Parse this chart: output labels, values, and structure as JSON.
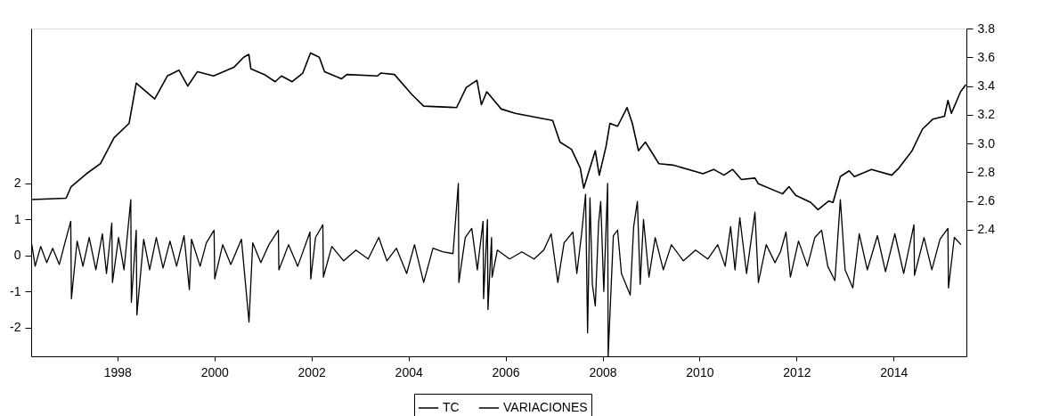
{
  "chart_data": {
    "type": "line",
    "xlim": [
      "1996-09-20",
      "2015-12-31"
    ],
    "xticks": [
      {
        "value": "1998-07-01",
        "label": "1998"
      },
      {
        "value": "2000-07-01",
        "label": "2000"
      },
      {
        "value": "2002-07-01",
        "label": "2002"
      },
      {
        "value": "2004-07-01",
        "label": "2004"
      },
      {
        "value": "2006-07-01",
        "label": "2006"
      },
      {
        "value": "2008-07-01",
        "label": "2008"
      },
      {
        "value": "2010-07-01",
        "label": "2010"
      },
      {
        "value": "2012-07-01",
        "label": "2012"
      },
      {
        "value": "2014-07-01",
        "label": "2014"
      }
    ],
    "ylim": [
      -2.8,
      6.3
    ],
    "yticks": [
      -2,
      -1,
      0,
      1,
      2
    ],
    "y2lim": [
      1.52,
      3.8
    ],
    "y2ticks": [
      2.4,
      2.6,
      2.8,
      {
        "value": 3,
        "label": "3.0"
      },
      3.2,
      3.4,
      3.6,
      3.8
    ],
    "grid": false,
    "legend": "bottom",
    "marker": "none",
    "line_style": "solid",
    "series": [
      {
        "name": "TC",
        "color": "#000000",
        "axis": "y2",
        "x": [
          "1996-09-25",
          "1997-06-10",
          "1997-07-18",
          "1997-11-10",
          "1998-02-24",
          "1998-06-06",
          "1998-09-27",
          "1998-11-20",
          "1999-04-08",
          "1999-07-12",
          "1999-10-08",
          "1999-12-13",
          "2000-02-24",
          "2000-06-24",
          "2000-11-24",
          "2001-02-06",
          "2001-03-17",
          "2001-04-01",
          "2001-07-12",
          "2001-10-01",
          "2001-11-17",
          "2002-02-06",
          "2002-04-27",
          "2002-06-24",
          "2002-08-29",
          "2002-10-08",
          "2003-02-13",
          "2003-03-25",
          "2003-11-10",
          "2003-12-05",
          "2004-03-17",
          "2004-07-27",
          "2004-10-23",
          "2005-06-28",
          "2005-09-09",
          "2005-11-28",
          "2006-01-01",
          "2006-02-10",
          "2006-05-30",
          "2006-09-13",
          "2007-06-21",
          "2007-08-15",
          "2007-11-10",
          "2008-01-15",
          "2008-02-10",
          "2008-03-28",
          "2008-05-07",
          "2008-06-06",
          "2008-07-27",
          "2008-08-25",
          "2008-10-22",
          "2009-01-01",
          "2009-02-10",
          "2009-03-28",
          "2009-05-19",
          "2009-08-29",
          "2009-12-13",
          "2010-07-27",
          "2010-10-15",
          "2011-01-01",
          "2011-03-07",
          "2011-05-12",
          "2011-08-22",
          "2011-09-17",
          "2012-03-17",
          "2012-05-04",
          "2012-06-24",
          "2012-10-15",
          "2012-12-09",
          "2013-02-28",
          "2013-04-01",
          "2013-05-26",
          "2013-07-31",
          "2013-09-09",
          "2014-01-15",
          "2014-06-17",
          "2014-08-10",
          "2014-11-17",
          "2015-02-03",
          "2015-04-23",
          "2015-07-19",
          "2015-08-14",
          "2015-09-09",
          "2015-11-17",
          "2015-12-27"
        ],
        "values": [
          2.61,
          2.62,
          2.7,
          2.79,
          2.86,
          3.04,
          3.14,
          3.42,
          3.31,
          3.47,
          3.51,
          3.4,
          3.5,
          3.47,
          3.53,
          3.6,
          3.62,
          3.52,
          3.48,
          3.43,
          3.47,
          3.43,
          3.49,
          3.63,
          3.6,
          3.5,
          3.45,
          3.48,
          3.47,
          3.49,
          3.48,
          3.34,
          3.26,
          3.25,
          3.39,
          3.44,
          3.27,
          3.36,
          3.24,
          3.21,
          3.16,
          3.01,
          2.96,
          2.83,
          2.69,
          2.83,
          2.95,
          2.78,
          2.98,
          3.14,
          3.12,
          3.25,
          3.14,
          2.95,
          3.01,
          2.86,
          2.85,
          2.79,
          2.82,
          2.78,
          2.82,
          2.75,
          2.76,
          2.72,
          2.65,
          2.7,
          2.64,
          2.59,
          2.54,
          2.6,
          2.59,
          2.77,
          2.81,
          2.77,
          2.82,
          2.78,
          2.83,
          2.95,
          3.1,
          3.17,
          3.19,
          3.3,
          3.21,
          3.36,
          3.41
        ]
      },
      {
        "name": "VARIACIONES",
        "color": "#000000",
        "x": [
          "1996-09-25",
          "1996-10-20",
          "1996-12-01",
          "1997-01-15",
          "1997-03-01",
          "1997-04-20",
          "1997-06-01",
          "1997-07-15",
          "1997-07-20",
          "1997-09-01",
          "1997-10-15",
          "1997-12-01",
          "1998-01-20",
          "1998-03-10",
          "1998-04-10",
          "1998-05-20",
          "1998-05-25",
          "1998-07-10",
          "1998-08-20",
          "1998-10-10",
          "1998-10-14",
          "1998-11-20",
          "1998-11-25",
          "1999-01-15",
          "1999-03-01",
          "1999-04-20",
          "1999-06-10",
          "1999-08-01",
          "1999-09-20",
          "1999-11-15",
          "1999-12-25",
          "2000-01-10",
          "2000-03-15",
          "2000-05-01",
          "2000-06-28",
          "2000-07-03",
          "2000-09-01",
          "2000-11-01",
          "2001-01-20",
          "2001-03-18",
          "2001-04-15",
          "2001-06-15",
          "2001-08-15",
          "2001-10-25",
          "2001-10-29",
          "2002-01-10",
          "2002-03-20",
          "2002-06-20",
          "2002-06-26",
          "2002-08-01",
          "2002-09-25",
          "2002-09-29",
          "2002-12-01",
          "2003-03-01",
          "2003-06-01",
          "2003-09-01",
          "2003-11-20",
          "2004-01-20",
          "2004-04-01",
          "2004-06-17",
          "2004-08-15",
          "2004-10-23",
          "2005-01-01",
          "2005-03-15",
          "2005-06-01",
          "2005-07-11",
          "2005-07-15",
          "2005-09-01",
          "2005-10-20",
          "2005-12-01",
          "2006-01-13",
          "2006-01-17",
          "2006-02-15",
          "2006-02-19",
          "2006-03-18",
          "2006-03-22",
          "2006-05-01",
          "2006-08-01",
          "2006-11-01",
          "2007-02-01",
          "2007-04-15",
          "2007-06-10",
          "2007-07-30",
          "2007-09-15",
          "2007-11-20",
          "2007-12-20",
          "2008-01-25",
          "2008-02-24",
          "2008-03-10",
          "2008-03-28",
          "2008-04-15",
          "2008-05-07",
          "2008-06-01",
          "2008-06-17",
          "2008-07-10",
          "2008-08-08",
          "2008-08-12",
          "2008-09-20",
          "2008-10-22",
          "2008-11-20",
          "2009-01-25",
          "2009-02-20",
          "2009-03-20",
          "2009-04-10",
          "2009-05-05",
          "2009-06-15",
          "2009-08-01",
          "2009-10-01",
          "2009-12-01",
          "2010-03-01",
          "2010-06-01",
          "2010-09-01",
          "2010-11-15",
          "2011-01-10",
          "2011-02-20",
          "2011-03-25",
          "2011-04-30",
          "2011-06-20",
          "2011-08-22",
          "2011-09-17",
          "2011-11-15",
          "2012-01-20",
          "2012-03-01",
          "2012-04-12",
          "2012-05-15",
          "2012-07-15",
          "2012-09-20",
          "2012-11-15",
          "2013-01-05",
          "2013-02-20",
          "2013-04-15",
          "2013-05-26",
          "2013-07-01",
          "2013-08-28",
          "2013-10-15",
          "2013-12-15",
          "2014-03-01",
          "2014-05-01",
          "2014-07-10",
          "2014-09-15",
          "2014-12-01",
          "2014-12-05",
          "2015-02-15",
          "2015-04-15",
          "2015-06-15",
          "2015-08-14",
          "2015-08-18",
          "2015-10-01",
          "2015-11-20"
        ],
        "values": [
          0.3,
          -0.3,
          0.25,
          -0.2,
          0.2,
          -0.25,
          0.35,
          0.95,
          -1.2,
          0.4,
          -0.3,
          0.5,
          -0.4,
          0.6,
          -0.5,
          0.9,
          -0.75,
          0.5,
          -0.4,
          1.55,
          -1.3,
          0.7,
          -1.65,
          0.45,
          -0.4,
          0.5,
          -0.35,
          0.4,
          -0.3,
          0.55,
          -0.95,
          0.45,
          -0.3,
          0.35,
          0.7,
          -0.65,
          0.3,
          -0.25,
          0.45,
          -1.85,
          0.35,
          -0.2,
          0.3,
          0.7,
          -0.4,
          0.3,
          -0.3,
          0.65,
          -0.65,
          0.5,
          0.85,
          -0.6,
          0.25,
          -0.15,
          0.15,
          -0.1,
          0.5,
          -0.15,
          0.2,
          -0.5,
          0.3,
          -0.75,
          0.2,
          0.1,
          0.05,
          2.0,
          -0.75,
          0.5,
          0.75,
          -0.4,
          0.95,
          -1.2,
          1.0,
          -1.5,
          0.5,
          -0.6,
          0.15,
          -0.1,
          0.1,
          -0.1,
          0.15,
          0.6,
          -0.75,
          0.35,
          0.65,
          -0.5,
          0.6,
          1.7,
          -2.15,
          1.6,
          -0.8,
          -1.4,
          0.9,
          1.5,
          -1.0,
          2.0,
          -2.8,
          0.55,
          0.7,
          -0.5,
          -1.1,
          0.8,
          1.5,
          -0.8,
          1.0,
          -0.6,
          0.5,
          -0.4,
          0.3,
          -0.15,
          0.15,
          -0.1,
          0.3,
          -0.3,
          0.8,
          -0.4,
          1.05,
          -0.5,
          1.2,
          -0.75,
          0.3,
          -0.2,
          0.1,
          0.65,
          -0.6,
          0.4,
          -0.3,
          0.5,
          0.7,
          -0.3,
          -0.7,
          1.55,
          -0.4,
          -0.9,
          0.6,
          -0.4,
          0.55,
          -0.45,
          0.6,
          -0.5,
          0.85,
          -0.55,
          0.5,
          -0.4,
          0.45,
          0.75,
          -0.9,
          0.5,
          0.3
        ]
      }
    ]
  }
}
